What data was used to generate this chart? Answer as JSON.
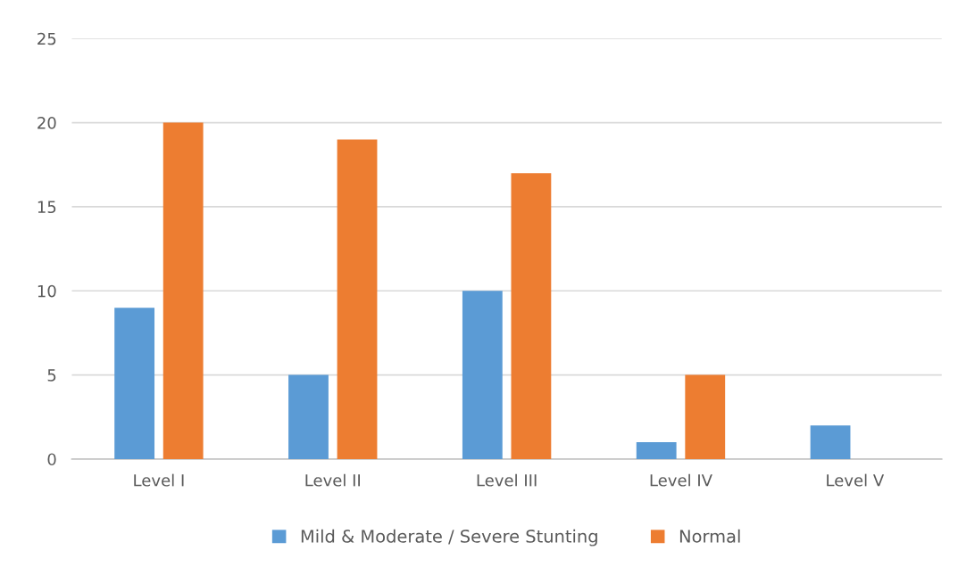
{
  "chart_data": {
    "type": "bar",
    "categories": [
      "Level I",
      "Level II",
      "Level III",
      "Level IV",
      "Level V"
    ],
    "series": [
      {
        "name": "Mild & Moderate / Severe Stunting",
        "color": "#5b9bd5",
        "values": [
          9,
          5,
          10,
          1,
          2
        ]
      },
      {
        "name": "Normal",
        "color": "#ed7d31",
        "values": [
          20,
          19,
          17,
          5,
          0
        ]
      }
    ],
    "ylim": [
      0,
      25
    ],
    "yticks": [
      0,
      5,
      10,
      15,
      20,
      25
    ],
    "grid": "y",
    "legend": "bottom"
  }
}
